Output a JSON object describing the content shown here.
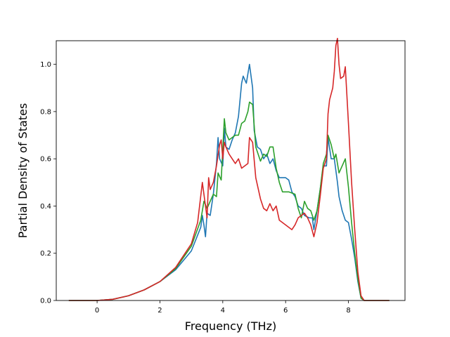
{
  "chart_data": {
    "type": "line",
    "title": "",
    "xlabel": "Frequency (THz)",
    "ylabel": "Partial Density of States",
    "xlim": [
      -1.3,
      9.8
    ],
    "ylim": [
      0.0,
      1.1
    ],
    "xticks": [
      0,
      2,
      4,
      6,
      8
    ],
    "xtick_labels": [
      "0",
      "2",
      "4",
      "6",
      "8"
    ],
    "yticks": [
      0.0,
      0.2,
      0.4,
      0.6,
      0.8,
      1.0
    ],
    "ytick_labels": [
      "0.0",
      "0.2",
      "0.4",
      "0.6",
      "0.8",
      "1.0"
    ],
    "grid": false,
    "legend": "none",
    "series": [
      {
        "color": "#1f77b4",
        "points": [
          [
            -0.9,
            0
          ],
          [
            0,
            0
          ],
          [
            0.5,
            0.005
          ],
          [
            1.0,
            0.02
          ],
          [
            1.5,
            0.045
          ],
          [
            2.0,
            0.08
          ],
          [
            2.5,
            0.13
          ],
          [
            3.0,
            0.21
          ],
          [
            3.3,
            0.31
          ],
          [
            3.35,
            0.36
          ],
          [
            3.4,
            0.32
          ],
          [
            3.45,
            0.27
          ],
          [
            3.5,
            0.37
          ],
          [
            3.6,
            0.36
          ],
          [
            3.7,
            0.45
          ],
          [
            3.8,
            0.58
          ],
          [
            3.85,
            0.69
          ],
          [
            3.9,
            0.6
          ],
          [
            4.0,
            0.57
          ],
          [
            4.05,
            0.73
          ],
          [
            4.1,
            0.65
          ],
          [
            4.2,
            0.64
          ],
          [
            4.3,
            0.68
          ],
          [
            4.4,
            0.71
          ],
          [
            4.5,
            0.78
          ],
          [
            4.6,
            0.92
          ],
          [
            4.65,
            0.95
          ],
          [
            4.75,
            0.92
          ],
          [
            4.85,
            1.0
          ],
          [
            4.95,
            0.9
          ],
          [
            5.0,
            0.72
          ],
          [
            5.1,
            0.65
          ],
          [
            5.2,
            0.64
          ],
          [
            5.3,
            0.6
          ],
          [
            5.4,
            0.62
          ],
          [
            5.5,
            0.58
          ],
          [
            5.6,
            0.6
          ],
          [
            5.7,
            0.55
          ],
          [
            5.8,
            0.52
          ],
          [
            6.0,
            0.52
          ],
          [
            6.1,
            0.51
          ],
          [
            6.2,
            0.46
          ],
          [
            6.3,
            0.44
          ],
          [
            6.4,
            0.4
          ],
          [
            6.5,
            0.39
          ],
          [
            6.6,
            0.36
          ],
          [
            6.75,
            0.35
          ],
          [
            6.85,
            0.35
          ],
          [
            6.9,
            0.3
          ],
          [
            7.0,
            0.38
          ],
          [
            7.1,
            0.47
          ],
          [
            7.2,
            0.57
          ],
          [
            7.3,
            0.57
          ],
          [
            7.35,
            0.69
          ],
          [
            7.45,
            0.6
          ],
          [
            7.55,
            0.6
          ],
          [
            7.65,
            0.5
          ],
          [
            7.7,
            0.44
          ],
          [
            7.8,
            0.38
          ],
          [
            7.9,
            0.34
          ],
          [
            8.0,
            0.33
          ],
          [
            8.1,
            0.26
          ],
          [
            8.2,
            0.18
          ],
          [
            8.3,
            0.08
          ],
          [
            8.4,
            0.01
          ],
          [
            8.5,
            0
          ],
          [
            9.3,
            0
          ]
        ]
      },
      {
        "color": "#2ca02c",
        "points": [
          [
            -0.9,
            0
          ],
          [
            0,
            0
          ],
          [
            0.5,
            0.005
          ],
          [
            1.0,
            0.02
          ],
          [
            1.5,
            0.045
          ],
          [
            2.0,
            0.08
          ],
          [
            2.5,
            0.135
          ],
          [
            3.0,
            0.23
          ],
          [
            3.3,
            0.34
          ],
          [
            3.4,
            0.42
          ],
          [
            3.5,
            0.39
          ],
          [
            3.6,
            0.42
          ],
          [
            3.7,
            0.45
          ],
          [
            3.8,
            0.44
          ],
          [
            3.85,
            0.54
          ],
          [
            3.95,
            0.51
          ],
          [
            4.05,
            0.77
          ],
          [
            4.1,
            0.71
          ],
          [
            4.2,
            0.68
          ],
          [
            4.3,
            0.69
          ],
          [
            4.4,
            0.7
          ],
          [
            4.5,
            0.7
          ],
          [
            4.6,
            0.75
          ],
          [
            4.7,
            0.76
          ],
          [
            4.8,
            0.8
          ],
          [
            4.85,
            0.84
          ],
          [
            4.95,
            0.83
          ],
          [
            5.05,
            0.65
          ],
          [
            5.2,
            0.59
          ],
          [
            5.3,
            0.62
          ],
          [
            5.4,
            0.61
          ],
          [
            5.5,
            0.65
          ],
          [
            5.6,
            0.65
          ],
          [
            5.7,
            0.56
          ],
          [
            5.8,
            0.5
          ],
          [
            5.9,
            0.46
          ],
          [
            6.1,
            0.46
          ],
          [
            6.3,
            0.45
          ],
          [
            6.4,
            0.39
          ],
          [
            6.5,
            0.35
          ],
          [
            6.6,
            0.42
          ],
          [
            6.7,
            0.39
          ],
          [
            6.8,
            0.38
          ],
          [
            6.9,
            0.34
          ],
          [
            7.0,
            0.38
          ],
          [
            7.1,
            0.47
          ],
          [
            7.2,
            0.58
          ],
          [
            7.3,
            0.62
          ],
          [
            7.35,
            0.7
          ],
          [
            7.45,
            0.66
          ],
          [
            7.55,
            0.6
          ],
          [
            7.6,
            0.62
          ],
          [
            7.7,
            0.54
          ],
          [
            7.8,
            0.57
          ],
          [
            7.9,
            0.6
          ],
          [
            8.0,
            0.48
          ],
          [
            8.1,
            0.33
          ],
          [
            8.2,
            0.2
          ],
          [
            8.3,
            0.09
          ],
          [
            8.4,
            0.01
          ],
          [
            8.5,
            0
          ],
          [
            9.3,
            0
          ]
        ]
      },
      {
        "color": "#d62728",
        "points": [
          [
            -0.9,
            0
          ],
          [
            0,
            0
          ],
          [
            0.5,
            0.005
          ],
          [
            1.0,
            0.02
          ],
          [
            1.5,
            0.045
          ],
          [
            2.0,
            0.08
          ],
          [
            2.5,
            0.14
          ],
          [
            3.0,
            0.24
          ],
          [
            3.2,
            0.33
          ],
          [
            3.35,
            0.5
          ],
          [
            3.4,
            0.45
          ],
          [
            3.5,
            0.35
          ],
          [
            3.55,
            0.52
          ],
          [
            3.6,
            0.47
          ],
          [
            3.7,
            0.5
          ],
          [
            3.8,
            0.57
          ],
          [
            3.9,
            0.66
          ],
          [
            3.95,
            0.68
          ],
          [
            4.0,
            0.6
          ],
          [
            4.05,
            0.67
          ],
          [
            4.1,
            0.65
          ],
          [
            4.2,
            0.62
          ],
          [
            4.3,
            0.6
          ],
          [
            4.4,
            0.58
          ],
          [
            4.5,
            0.6
          ],
          [
            4.6,
            0.56
          ],
          [
            4.7,
            0.57
          ],
          [
            4.8,
            0.58
          ],
          [
            4.85,
            0.69
          ],
          [
            4.95,
            0.67
          ],
          [
            5.05,
            0.52
          ],
          [
            5.2,
            0.43
          ],
          [
            5.3,
            0.39
          ],
          [
            5.4,
            0.38
          ],
          [
            5.5,
            0.41
          ],
          [
            5.6,
            0.38
          ],
          [
            5.7,
            0.4
          ],
          [
            5.8,
            0.34
          ],
          [
            5.9,
            0.33
          ],
          [
            6.0,
            0.32
          ],
          [
            6.1,
            0.31
          ],
          [
            6.2,
            0.3
          ],
          [
            6.3,
            0.32
          ],
          [
            6.4,
            0.35
          ],
          [
            6.5,
            0.36
          ],
          [
            6.6,
            0.37
          ],
          [
            6.7,
            0.35
          ],
          [
            6.8,
            0.32
          ],
          [
            6.9,
            0.27
          ],
          [
            7.0,
            0.33
          ],
          [
            7.1,
            0.44
          ],
          [
            7.2,
            0.56
          ],
          [
            7.3,
            0.6
          ],
          [
            7.35,
            0.79
          ],
          [
            7.4,
            0.85
          ],
          [
            7.5,
            0.9
          ],
          [
            7.55,
            0.97
          ],
          [
            7.6,
            1.08
          ],
          [
            7.65,
            1.11
          ],
          [
            7.7,
            1.0
          ],
          [
            7.75,
            0.94
          ],
          [
            7.85,
            0.95
          ],
          [
            7.9,
            0.99
          ],
          [
            8.0,
            0.75
          ],
          [
            8.1,
            0.5
          ],
          [
            8.2,
            0.3
          ],
          [
            8.3,
            0.12
          ],
          [
            8.4,
            0.02
          ],
          [
            8.5,
            0
          ],
          [
            9.3,
            0
          ]
        ]
      }
    ]
  }
}
